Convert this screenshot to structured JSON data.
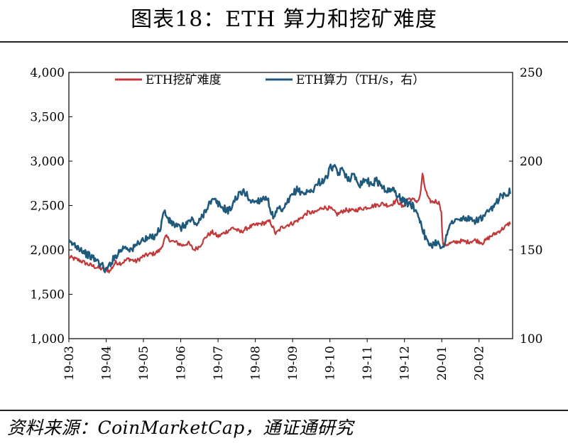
{
  "title": "图表18：ETH 算力和挖矿难度",
  "source": "资料来源：CoinMarketCap，通证通研究",
  "chart_data": {
    "type": "line",
    "x_labels": [
      "19-03",
      "19-04",
      "19-05",
      "19-06",
      "19-07",
      "19-08",
      "19-09",
      "19-10",
      "19-11",
      "19-12",
      "20-01",
      "20-02"
    ],
    "x_range": [
      0,
      11.9
    ],
    "y_left": {
      "ticks": [
        "1,000",
        "1,500",
        "2,000",
        "2,500",
        "3,000",
        "3,500",
        "4,000"
      ],
      "range": [
        1000,
        4000
      ]
    },
    "y_right": {
      "ticks": [
        "100",
        "150",
        "200",
        "250"
      ],
      "range": [
        100,
        250
      ]
    },
    "legend": {
      "position": "top-center"
    },
    "series": [
      {
        "name": "ETH挖矿难度",
        "axis": "left",
        "color": "#c0393b",
        "x": [
          0,
          0.15,
          0.3,
          0.5,
          0.7,
          0.85,
          1.0,
          1.1,
          1.25,
          1.4,
          1.6,
          1.8,
          2.0,
          2.15,
          2.3,
          2.45,
          2.6,
          2.75,
          2.9,
          3.05,
          3.2,
          3.35,
          3.5,
          3.7,
          3.85,
          4.0,
          4.2,
          4.4,
          4.6,
          4.8,
          5.0,
          5.2,
          5.4,
          5.55,
          5.7,
          5.85,
          6.0,
          6.2,
          6.4,
          6.6,
          6.8,
          7.0,
          7.2,
          7.4,
          7.6,
          7.8,
          8.0,
          8.2,
          8.4,
          8.6,
          8.8,
          8.95,
          9.1,
          9.25,
          9.35,
          9.42,
          9.48,
          9.55,
          9.65,
          9.75,
          9.85,
          9.95,
          10.0,
          10.02,
          10.1,
          10.3,
          10.5,
          10.7,
          10.9,
          11.1,
          11.3,
          11.5,
          11.7,
          11.85
        ],
        "values": [
          1920,
          1900,
          1880,
          1840,
          1810,
          1790,
          1780,
          1760,
          1860,
          1850,
          1900,
          1870,
          1930,
          1950,
          1960,
          2000,
          2150,
          2100,
          2080,
          2050,
          2080,
          2000,
          2040,
          2160,
          2200,
          2150,
          2200,
          2250,
          2200,
          2250,
          2280,
          2300,
          2320,
          2180,
          2250,
          2280,
          2300,
          2350,
          2420,
          2420,
          2480,
          2470,
          2400,
          2450,
          2440,
          2460,
          2480,
          2500,
          2520,
          2500,
          2560,
          2480,
          2580,
          2560,
          2550,
          2600,
          2850,
          2700,
          2560,
          2540,
          2550,
          2520,
          2380,
          2050,
          2060,
          2080,
          2100,
          2090,
          2110,
          2080,
          2150,
          2200,
          2260,
          2310
        ]
      },
      {
        "name": "ETH算力（TH/s，右）",
        "axis": "right",
        "color": "#1f5a7d",
        "x": [
          0,
          0.15,
          0.3,
          0.45,
          0.6,
          0.75,
          0.9,
          1.0,
          1.1,
          1.3,
          1.5,
          1.7,
          1.9,
          2.1,
          2.3,
          2.45,
          2.55,
          2.7,
          2.85,
          3.0,
          3.15,
          3.3,
          3.45,
          3.6,
          3.75,
          3.9,
          4.1,
          4.3,
          4.5,
          4.7,
          4.9,
          5.1,
          5.3,
          5.5,
          5.6,
          5.75,
          5.9,
          6.1,
          6.3,
          6.5,
          6.7,
          6.9,
          7.0,
          7.1,
          7.2,
          7.35,
          7.5,
          7.65,
          7.8,
          7.95,
          8.1,
          8.25,
          8.4,
          8.55,
          8.7,
          8.85,
          9.0,
          9.15,
          9.3,
          9.45,
          9.6,
          9.75,
          9.9,
          10.05,
          10.2,
          10.35,
          10.5,
          10.65,
          10.8,
          10.95,
          11.1,
          11.25,
          11.4,
          11.55,
          11.7,
          11.85
        ],
        "values": [
          154,
          153,
          151,
          148,
          146,
          144,
          141,
          138,
          142,
          148,
          152,
          150,
          155,
          156,
          158,
          162,
          172,
          166,
          164,
          162,
          165,
          167,
          164,
          170,
          176,
          178,
          174,
          172,
          180,
          183,
          177,
          178,
          180,
          167,
          173,
          172,
          178,
          184,
          182,
          183,
          188,
          190,
          196,
          197,
          193,
          195,
          190,
          192,
          187,
          190,
          187,
          189,
          186,
          183,
          184,
          180,
          177,
          176,
          173,
          165,
          154,
          153,
          155,
          150,
          165,
          166,
          167,
          168,
          166,
          167,
          168,
          171,
          174,
          180,
          182,
          183
        ]
      }
    ]
  }
}
